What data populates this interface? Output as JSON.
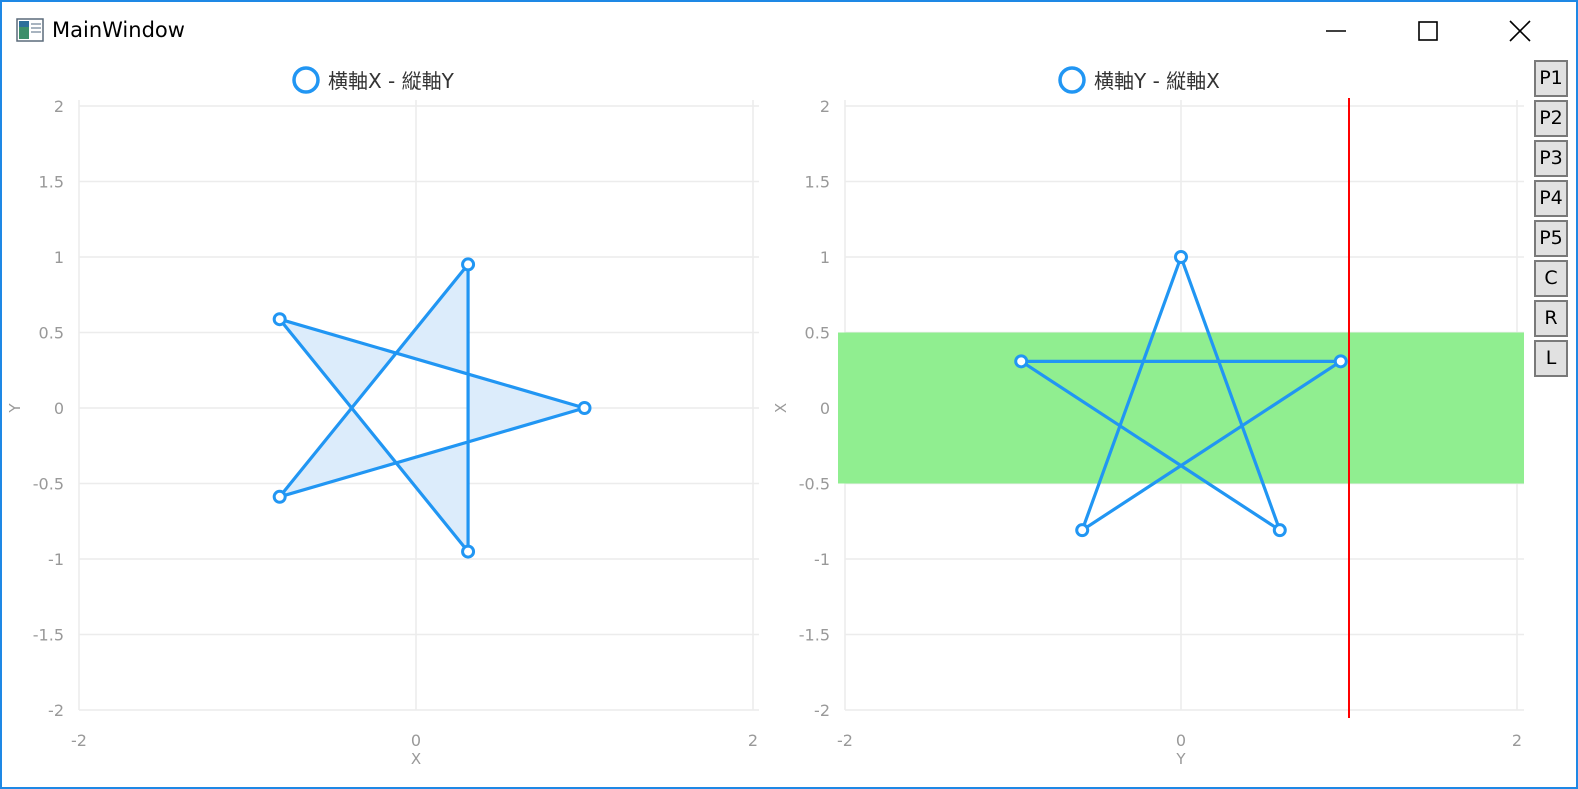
{
  "window": {
    "title": "MainWindow",
    "accent": "#1e88e5",
    "controls": {
      "minimize": "minimize",
      "maximize": "maximize",
      "close": "close"
    }
  },
  "side_buttons": [
    "P1",
    "P2",
    "P3",
    "P4",
    "P5",
    "C",
    "R",
    "L"
  ],
  "chart_data": [
    {
      "type": "line",
      "legend": "横軸X - 縦軸Y",
      "legend_placement": "top-center",
      "xlabel": "X",
      "ylabel": "Y",
      "xlim": [
        -2,
        2
      ],
      "ylim": [
        -2,
        2
      ],
      "xticks": [
        "-2",
        "0",
        "2"
      ],
      "yticks": [
        "2",
        "1.5",
        "1",
        "0.5",
        "0",
        "-0.5",
        "-1",
        "-1.5",
        "-2"
      ],
      "grid": true,
      "series": [
        {
          "color": "#2196f3",
          "fill": "#dcecfb",
          "points": [
            {
              "x": 1,
              "y": 0
            },
            {
              "x": -0.809,
              "y": 0.588
            },
            {
              "x": 0.309,
              "y": -0.951
            },
            {
              "x": 0.309,
              "y": 0.951
            },
            {
              "x": -0.809,
              "y": -0.588
            },
            {
              "x": 1,
              "y": 0
            }
          ]
        }
      ]
    },
    {
      "type": "line",
      "legend": "横軸Y - 縦軸X",
      "legend_placement": "top-center",
      "xlabel": "Y",
      "ylabel": "X",
      "xlim": [
        -2,
        2
      ],
      "ylim": [
        -2,
        2
      ],
      "xticks": [
        "-2",
        "0",
        "2"
      ],
      "yticks": [
        "2",
        "1.5",
        "1",
        "0.5",
        "0",
        "-0.5",
        "-1",
        "-1.5",
        "-2"
      ],
      "grid": true,
      "highlight_band": {
        "from": -0.5,
        "to": 0.5,
        "color": "#90ee90"
      },
      "marker_line": {
        "at": 1.0,
        "color": "#ff0000"
      },
      "series": [
        {
          "color": "#2196f3",
          "points": [
            {
              "x": 0,
              "y": 1
            },
            {
              "x": 0.588,
              "y": -0.809
            },
            {
              "x": -0.951,
              "y": 0.309
            },
            {
              "x": 0.951,
              "y": 0.309
            },
            {
              "x": -0.588,
              "y": -0.809
            },
            {
              "x": 0,
              "y": 1
            }
          ]
        }
      ]
    }
  ]
}
